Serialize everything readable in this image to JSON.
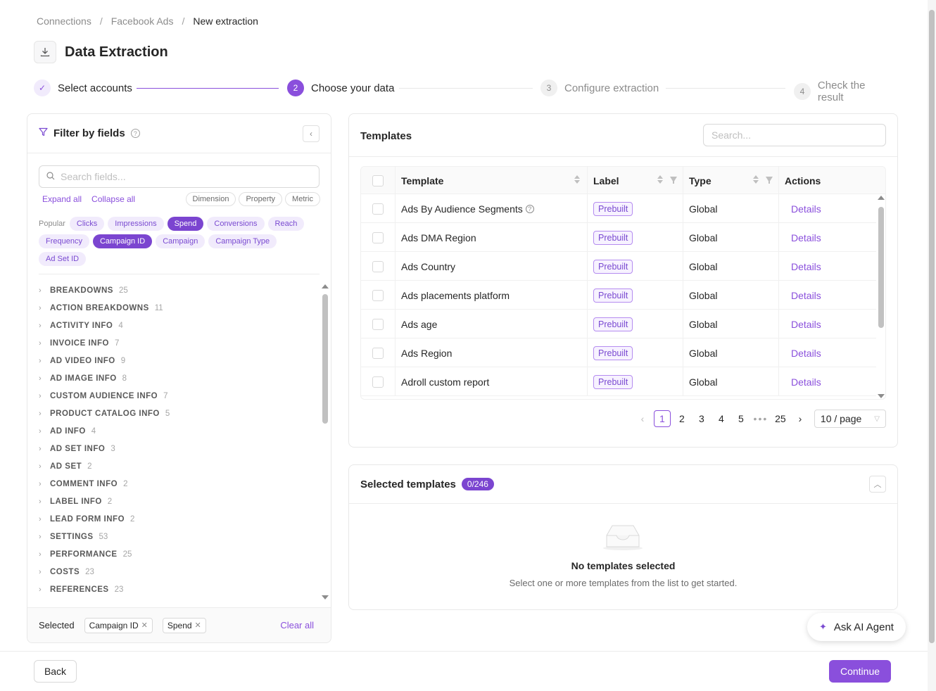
{
  "breadcrumb": [
    "Connections",
    "Facebook Ads",
    "New extraction"
  ],
  "page_title": "Data Extraction",
  "stepper": {
    "steps": [
      {
        "num": "✓",
        "label": "Select accounts",
        "state": "done"
      },
      {
        "num": "2",
        "label": "Choose your data",
        "state": "active"
      },
      {
        "num": "3",
        "label": "Configure extraction",
        "state": "todo"
      },
      {
        "num": "4",
        "label": "Check the result",
        "state": "todo"
      }
    ]
  },
  "filter": {
    "title": "Filter by fields",
    "search_placeholder": "Search fields...",
    "expand_all": "Expand all",
    "collapse_all": "Collapse all",
    "type_pills": [
      "Dimension",
      "Property",
      "Metric"
    ],
    "popular_label": "Popular",
    "popular_chips": [
      {
        "label": "Clicks",
        "selected": false
      },
      {
        "label": "Impressions",
        "selected": false
      },
      {
        "label": "Spend",
        "selected": true
      },
      {
        "label": "Conversions",
        "selected": false
      },
      {
        "label": "Reach",
        "selected": false
      },
      {
        "label": "Frequency",
        "selected": false
      },
      {
        "label": "Campaign ID",
        "selected": true
      },
      {
        "label": "Campaign",
        "selected": false
      },
      {
        "label": "Campaign Type",
        "selected": false
      },
      {
        "label": "Ad Set ID",
        "selected": false
      }
    ],
    "groups": [
      {
        "name": "BREAKDOWNS",
        "count": "25"
      },
      {
        "name": "ACTION BREAKDOWNS",
        "count": "11"
      },
      {
        "name": "ACTIVITY INFO",
        "count": "4"
      },
      {
        "name": "INVOICE INFO",
        "count": "7"
      },
      {
        "name": "AD VIDEO INFO",
        "count": "9"
      },
      {
        "name": "AD IMAGE INFO",
        "count": "8"
      },
      {
        "name": "CUSTOM AUDIENCE INFO",
        "count": "7"
      },
      {
        "name": "PRODUCT CATALOG INFO",
        "count": "5"
      },
      {
        "name": "AD INFO",
        "count": "4"
      },
      {
        "name": "AD SET INFO",
        "count": "3"
      },
      {
        "name": "AD SET",
        "count": "2"
      },
      {
        "name": "COMMENT INFO",
        "count": "2"
      },
      {
        "name": "LABEL INFO",
        "count": "2"
      },
      {
        "name": "LEAD FORM INFO",
        "count": "2"
      },
      {
        "name": "SETTINGS",
        "count": "53"
      },
      {
        "name": "PERFORMANCE",
        "count": "25"
      },
      {
        "name": "COSTS",
        "count": "23"
      },
      {
        "name": "REFERENCES",
        "count": "23"
      }
    ],
    "selected_label": "Selected",
    "selected_tags": [
      "Campaign ID",
      "Spend"
    ],
    "clear_all": "Clear all"
  },
  "templates": {
    "title": "Templates",
    "search_placeholder": "Search...",
    "columns": [
      "Template",
      "Label",
      "Type",
      "Actions"
    ],
    "rows": [
      {
        "name": "Ads By Audience Segments",
        "label": "Prebuilt",
        "type": "Global",
        "action": "Details",
        "help": true
      },
      {
        "name": "Ads DMA Region",
        "label": "Prebuilt",
        "type": "Global",
        "action": "Details",
        "help": false
      },
      {
        "name": "Ads Country",
        "label": "Prebuilt",
        "type": "Global",
        "action": "Details",
        "help": false
      },
      {
        "name": "Ads placements platform",
        "label": "Prebuilt",
        "type": "Global",
        "action": "Details",
        "help": false
      },
      {
        "name": "Ads age",
        "label": "Prebuilt",
        "type": "Global",
        "action": "Details",
        "help": false
      },
      {
        "name": "Ads Region",
        "label": "Prebuilt",
        "type": "Global",
        "action": "Details",
        "help": false
      },
      {
        "name": "Adroll custom report",
        "label": "Prebuilt",
        "type": "Global",
        "action": "Details",
        "help": false
      }
    ],
    "pagination": {
      "pages": [
        "1",
        "2",
        "3",
        "4",
        "5"
      ],
      "current": "1",
      "dots": "•••",
      "last": "25",
      "page_size": "10 / page"
    }
  },
  "selected_templates": {
    "title": "Selected templates",
    "count": "0/246",
    "empty_title": "No templates selected",
    "empty_sub": "Select one or more templates from the list to get started."
  },
  "ai_agent": "Ask AI Agent",
  "footer": {
    "back": "Back",
    "continue": "Continue"
  },
  "colors": {
    "accent": "#8a4fdc",
    "accent_light": "#f1ebfc"
  }
}
